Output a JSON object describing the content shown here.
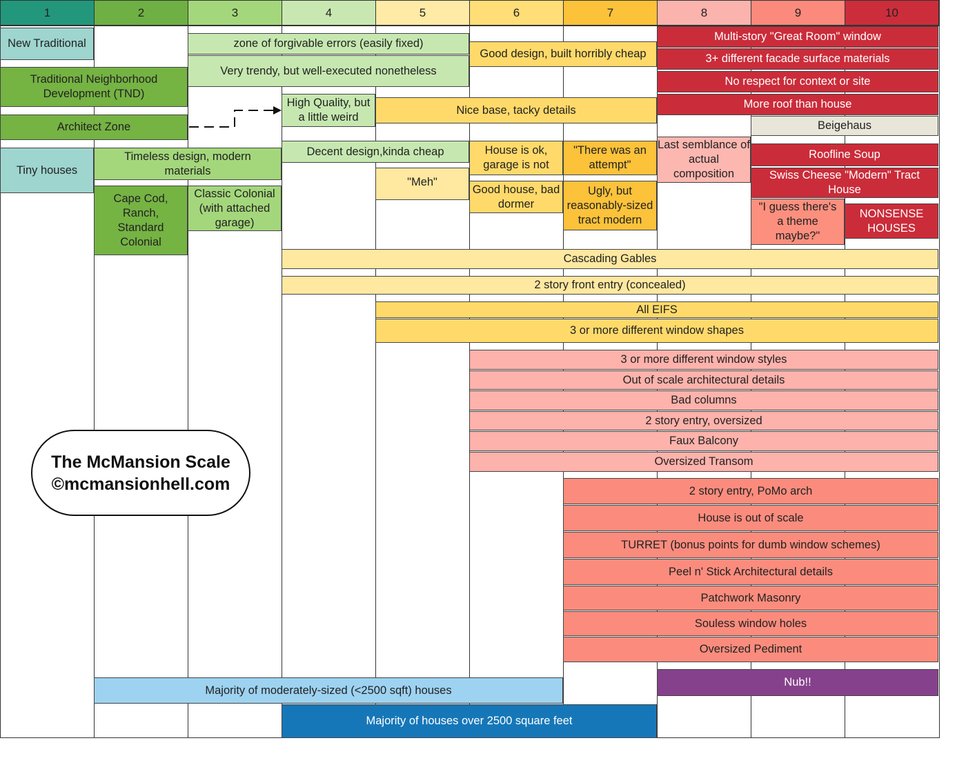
{
  "columns": [
    "1",
    "2",
    "3",
    "4",
    "5",
    "6",
    "7",
    "8",
    "9",
    "10"
  ],
  "column_colors": [
    "#23977c",
    "#6eb043",
    "#a4d77b",
    "#c9e8b1",
    "#ffeaa6",
    "#ffdd77",
    "#fbc23a",
    "#fbb3ad",
    "#fb8a7c",
    "#cc2d3b"
  ],
  "title": {
    "line1": "The McMansion Scale",
    "line2": "©mcmansionhell.com"
  },
  "blocks": {
    "new_traditional": "New Traditional",
    "zone": "zone of forgivable errors (easily fixed)",
    "trendy": "Very trendy, but well-executed nonetheless",
    "good_design": "Good design, built horribly cheap",
    "multi_story": "Multi-story \"Great Room\" window",
    "facade": "3+ different facade surface materials",
    "no_respect": "No respect for context or site",
    "more_roof": "More roof than house",
    "tnd": "Traditional Neighborhood Development (TND)",
    "high_quality": "High Quality, but a little weird",
    "nice_base": "Nice base, tacky details",
    "architect_zone": "Architect Zone",
    "beigehaus": "Beigehaus",
    "tiny": "Tiny houses",
    "timeless": "Timeless design, modern materials",
    "decent": "Decent design,kinda cheap",
    "house_ok": "House is ok, garage is not",
    "attempt": "\"There was an attempt\"",
    "last_semblance": "Last semblance of actual composition",
    "roofline": "Roofline Soup",
    "swiss": "Swiss Cheese \"Modern\" Tract House",
    "meh": "\"Meh\"",
    "good_house": "Good house, bad dormer",
    "ugly": "Ugly, but reasonably-sized tract modern",
    "cape_cod": "Cape Cod, Ranch, Standard Colonial",
    "classic": "Classic Colonial (with attached garage)",
    "guess": "\"I guess there's a theme maybe?\"",
    "nonsense": "NONSENSE HOUSES",
    "cascading": "Cascading Gables",
    "front_entry": "2 story front entry (concealed)",
    "eifs": "All EIFS",
    "window_shapes": "3 or more different window shapes",
    "window_styles": "3 or more different window styles",
    "out_of_scale": "Out of scale architectural details",
    "bad_columns": "Bad columns",
    "entry_oversized": "2 story entry, oversized",
    "faux_balcony": "Faux Balcony",
    "transom": "Oversized Transom",
    "pomo": "2 story entry, PoMo arch",
    "house_scale": "House is out of scale",
    "turret": "TURRET (bonus points for dumb window schemes)",
    "peel": "Peel n' Stick Architectural details",
    "masonry": "Patchwork Masonry",
    "souless": "Souless window holes",
    "pediment": "Oversized Pediment",
    "nub": "Nub!!",
    "moderate": "Majority of moderately-sized (<2500 sqft) houses",
    "over_2500": "Majority of houses over 2500 square feet"
  }
}
